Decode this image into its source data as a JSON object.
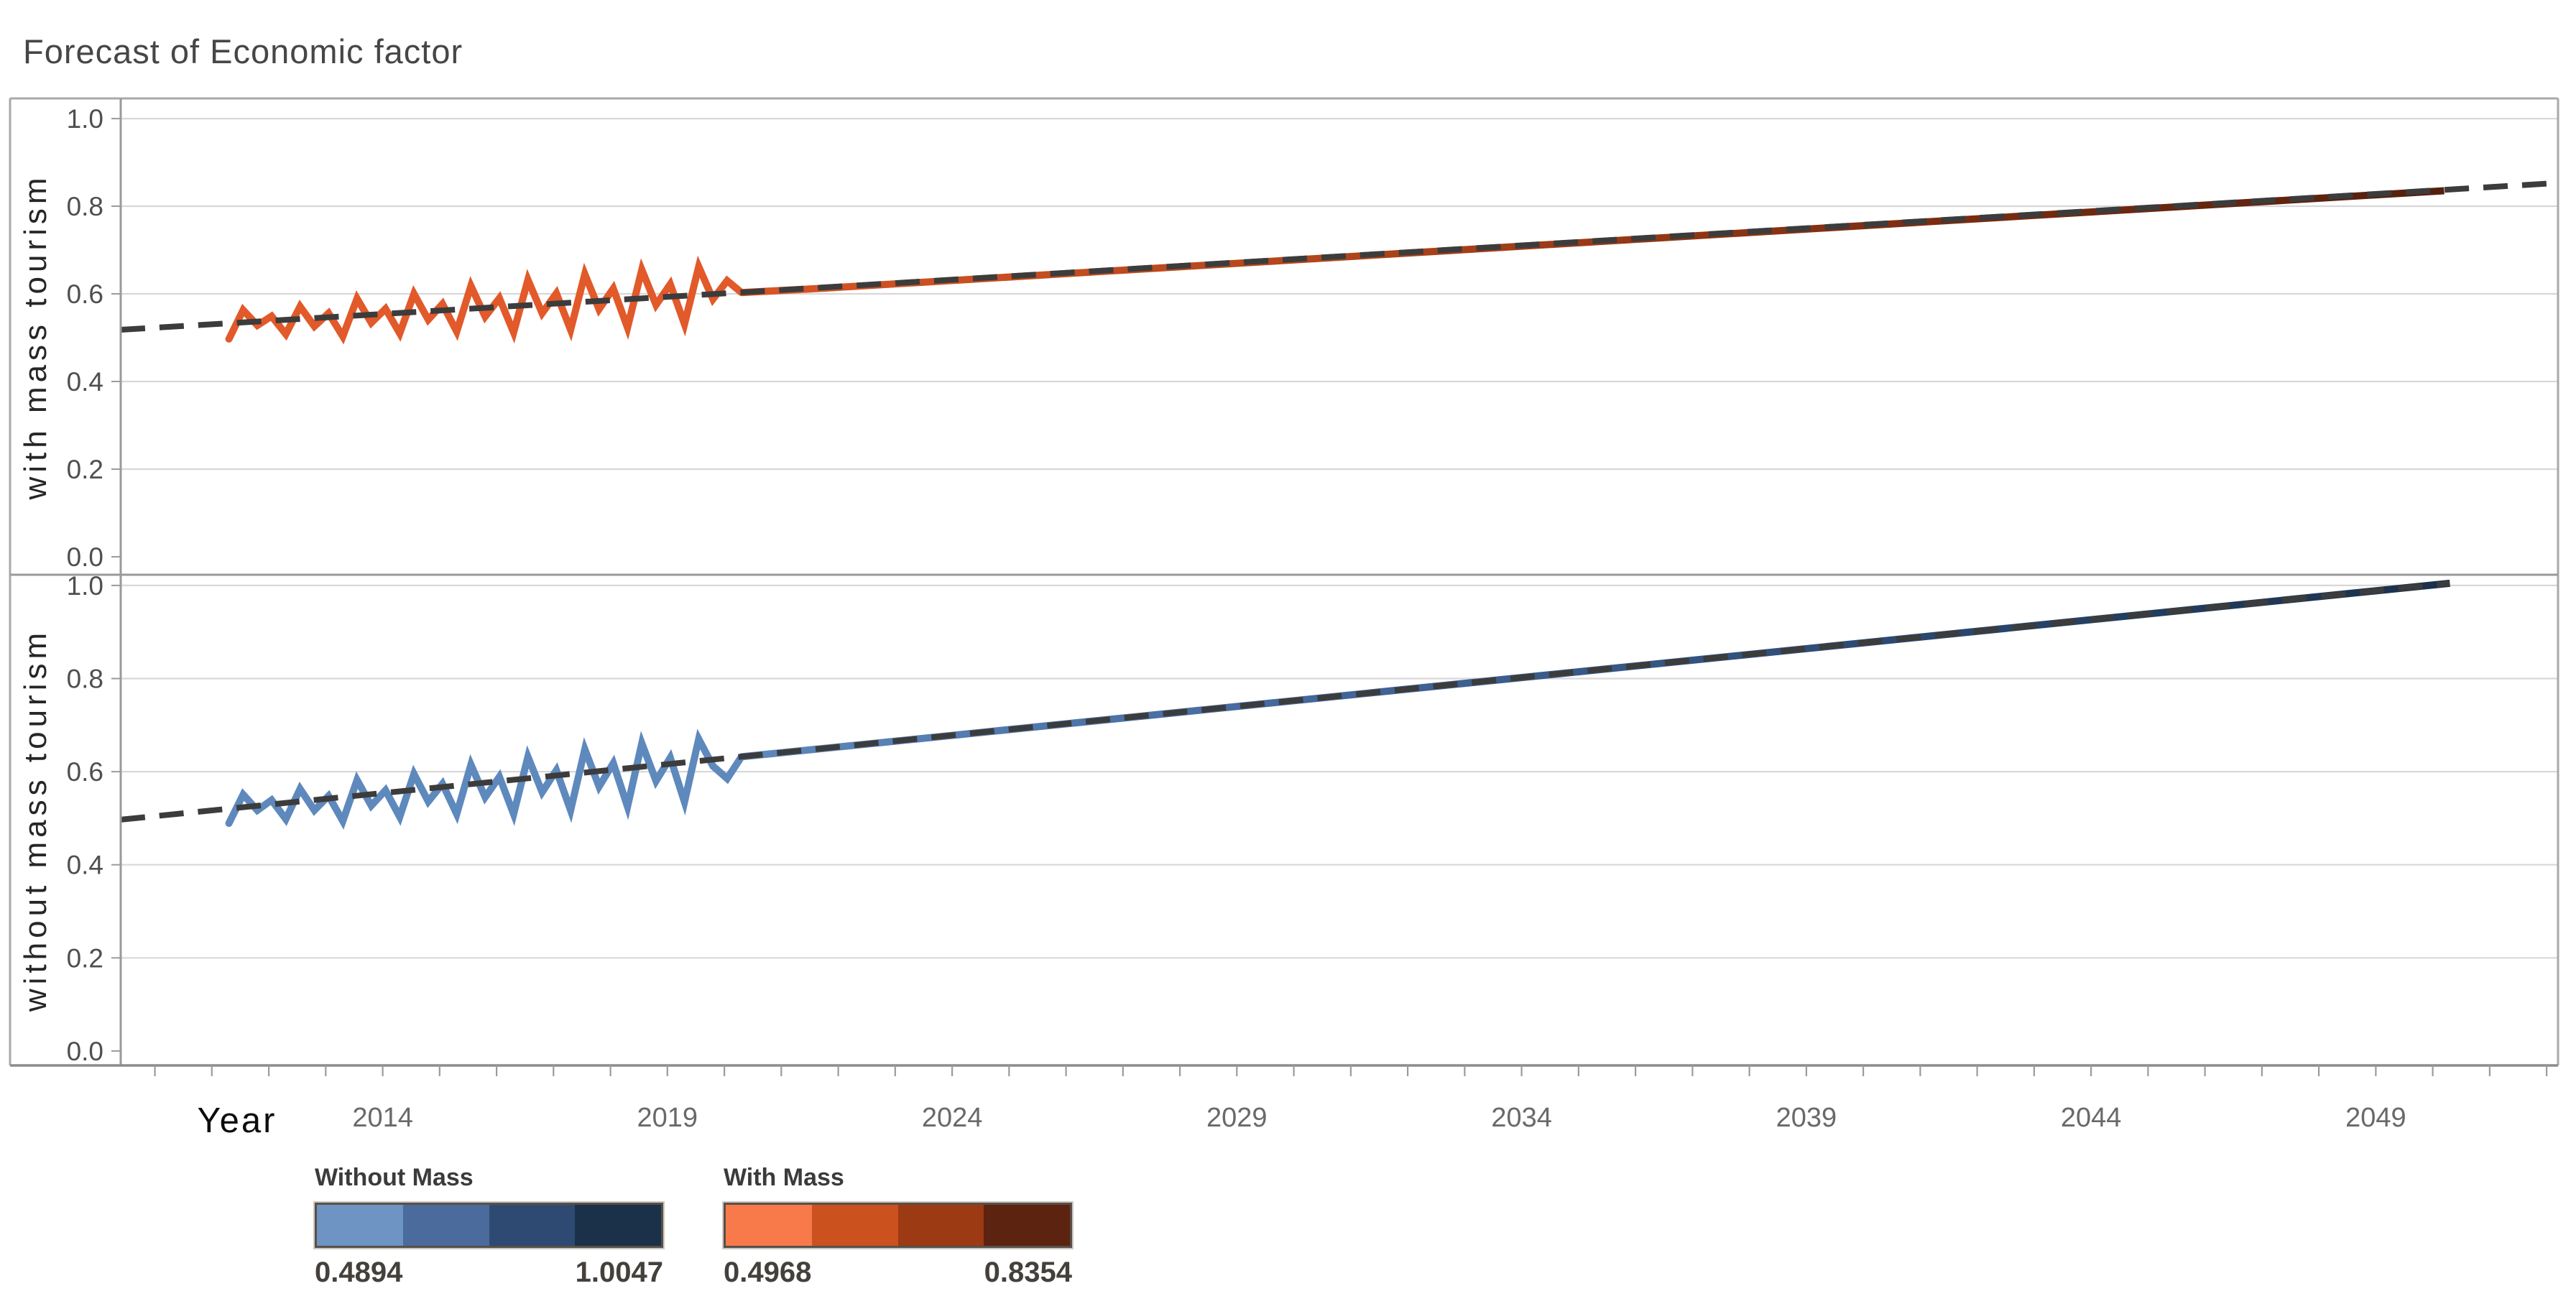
{
  "title": "Forecast of Economic factor",
  "legends": [
    {
      "title": "Without Mass",
      "min": "0.4894",
      "max": "1.0047",
      "colors": [
        "#6e94c4",
        "#4a6b9c",
        "#2e4a72",
        "#1b3049"
      ]
    },
    {
      "title": "With Mass",
      "min": "0.4968",
      "max": "0.8354",
      "colors": [
        "#f87a4b",
        "#cb521f",
        "#9c3a14",
        "#5c2310"
      ]
    }
  ],
  "chart_data": {
    "type": "line",
    "title": "Forecast of Economic factor",
    "xlabel": "Year",
    "x_range": [
      2009.4,
      2052.2
    ],
    "x_ticks_major": [
      2014,
      2019,
      2024,
      2029,
      2034,
      2039,
      2044,
      2049
    ],
    "x_ticks_minor_start": 2010,
    "x_ticks_minor_end": 2052,
    "grid": true,
    "legend_position": "bottom",
    "panels": [
      {
        "ylabel": "with mass tourism",
        "y_range": [
          -0.041,
          1.046
        ],
        "y_ticks": [
          0.0,
          0.2,
          0.4,
          0.6,
          0.8,
          1.0
        ],
        "series": [
          {
            "name": "actual-with-mass-tourism",
            "kind": "actual",
            "color": "#e2592a",
            "points": [
              [
                2011.3,
                0.497
              ],
              [
                2011.55,
                0.563
              ],
              [
                2011.8,
                0.528
              ],
              [
                2012.05,
                0.549
              ],
              [
                2012.3,
                0.508
              ],
              [
                2012.55,
                0.571
              ],
              [
                2012.8,
                0.526
              ],
              [
                2013.05,
                0.556
              ],
              [
                2013.3,
                0.503
              ],
              [
                2013.55,
                0.589
              ],
              [
                2013.8,
                0.534
              ],
              [
                2014.05,
                0.566
              ],
              [
                2014.3,
                0.51
              ],
              [
                2014.55,
                0.6
              ],
              [
                2014.8,
                0.541
              ],
              [
                2015.05,
                0.577
              ],
              [
                2015.3,
                0.514
              ],
              [
                2015.55,
                0.618
              ],
              [
                2015.8,
                0.548
              ],
              [
                2016.05,
                0.59
              ],
              [
                2016.3,
                0.512
              ],
              [
                2016.55,
                0.632
              ],
              [
                2016.8,
                0.556
              ],
              [
                2017.05,
                0.601
              ],
              [
                2017.3,
                0.518
              ],
              [
                2017.55,
                0.645
              ],
              [
                2017.8,
                0.565
              ],
              [
                2018.05,
                0.612
              ],
              [
                2018.3,
                0.523
              ],
              [
                2018.55,
                0.655
              ],
              [
                2018.8,
                0.575
              ],
              [
                2019.05,
                0.622
              ],
              [
                2019.3,
                0.531
              ],
              [
                2019.55,
                0.662
              ],
              [
                2019.8,
                0.588
              ],
              [
                2020.05,
                0.63
              ],
              [
                2020.3,
                0.603
              ]
            ]
          },
          {
            "name": "forecast-with-mass-tourism",
            "kind": "forecast",
            "gradient": [
              "#d85526",
              "#b2461c",
              "#7f2e11",
              "#53200e"
            ],
            "points": [
              [
                2020.3,
                0.603
              ],
              [
                2021.5,
                0.611
              ],
              [
                2050.2,
                0.8354
              ]
            ]
          },
          {
            "name": "trend-with-mass-tourism",
            "kind": "trend",
            "color": "#3c3c3c",
            "points": [
              [
                2009.4,
                0.518
              ],
              [
                2052.2,
                0.853
              ]
            ]
          }
        ]
      },
      {
        "ylabel": "without mass tourism",
        "y_range": [
          -0.031,
          1.023
        ],
        "y_ticks": [
          0.0,
          0.2,
          0.4,
          0.6,
          0.8,
          1.0
        ],
        "series": [
          {
            "name": "actual-without-mass-tourism",
            "kind": "actual",
            "color": "#5e89bd",
            "points": [
              [
                2011.3,
                0.489
              ],
              [
                2011.55,
                0.551
              ],
              [
                2011.8,
                0.517
              ],
              [
                2012.05,
                0.539
              ],
              [
                2012.3,
                0.498
              ],
              [
                2012.55,
                0.563
              ],
              [
                2012.8,
                0.517
              ],
              [
                2013.05,
                0.548
              ],
              [
                2013.3,
                0.494
              ],
              [
                2013.55,
                0.582
              ],
              [
                2013.8,
                0.527
              ],
              [
                2014.05,
                0.56
              ],
              [
                2014.3,
                0.503
              ],
              [
                2014.55,
                0.595
              ],
              [
                2014.8,
                0.536
              ],
              [
                2015.05,
                0.574
              ],
              [
                2015.3,
                0.509
              ],
              [
                2015.55,
                0.615
              ],
              [
                2015.8,
                0.545
              ],
              [
                2016.05,
                0.589
              ],
              [
                2016.3,
                0.509
              ],
              [
                2016.55,
                0.632
              ],
              [
                2016.8,
                0.556
              ],
              [
                2017.05,
                0.603
              ],
              [
                2017.3,
                0.517
              ],
              [
                2017.55,
                0.648
              ],
              [
                2017.8,
                0.568
              ],
              [
                2018.05,
                0.618
              ],
              [
                2018.3,
                0.525
              ],
              [
                2018.55,
                0.661
              ],
              [
                2018.8,
                0.58
              ],
              [
                2019.05,
                0.63
              ],
              [
                2019.3,
                0.535
              ],
              [
                2019.55,
                0.67
              ],
              [
                2019.8,
                0.612
              ],
              [
                2020.05,
                0.585
              ],
              [
                2020.3,
                0.632
              ]
            ]
          },
          {
            "name": "forecast-without-mass-tourism",
            "kind": "forecast",
            "gradient": [
              "#5e89bd",
              "#44679b",
              "#2c4a72",
              "#1a2f4a"
            ],
            "points": [
              [
                2020.3,
                0.632
              ],
              [
                2050.3,
                1.0047
              ]
            ]
          },
          {
            "name": "trend-without-mass-tourism",
            "kind": "trend",
            "color": "#3c3c3c",
            "points": [
              [
                2009.4,
                0.497
              ],
              [
                2050.3,
                1.0047
              ]
            ]
          }
        ]
      }
    ]
  }
}
